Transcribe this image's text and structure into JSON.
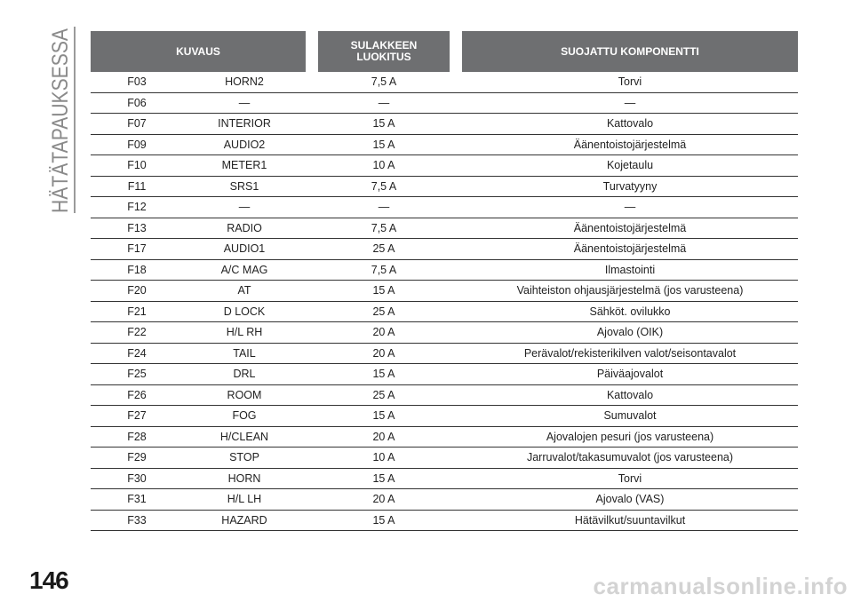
{
  "section": {
    "title": "HÄTÄTAPAUKSESSA"
  },
  "page": {
    "number": "146"
  },
  "watermark": {
    "text": "carmanualsonline.info"
  },
  "table": {
    "headers": {
      "kuvaus": "KUVAUS",
      "sulakkeen_luokitus_line1": "SULAKKEEN",
      "sulakkeen_luokitus_line2": "LUOKITUS",
      "suojattu_komponentti": "SUOJATTU KOMPONENTTI"
    },
    "rows": [
      {
        "code": "F03",
        "name": "HORN2",
        "rating": "7,5 A",
        "component": "Torvi"
      },
      {
        "code": "F06",
        "name": "—",
        "rating": "—",
        "component": "—"
      },
      {
        "code": "F07",
        "name": "INTERIOR",
        "rating": "15 A",
        "component": "Kattovalo"
      },
      {
        "code": "F09",
        "name": "AUDIO2",
        "rating": "15 A",
        "component": "Äänentoistojärjestelmä"
      },
      {
        "code": "F10",
        "name": "METER1",
        "rating": "10 A",
        "component": "Kojetaulu"
      },
      {
        "code": "F11",
        "name": "SRS1",
        "rating": "7,5 A",
        "component": "Turvatyyny"
      },
      {
        "code": "F12",
        "name": "—",
        "rating": "—",
        "component": "—"
      },
      {
        "code": "F13",
        "name": "RADIO",
        "rating": "7,5 A",
        "component": "Äänentoistojärjestelmä"
      },
      {
        "code": "F17",
        "name": "AUDIO1",
        "rating": "25 A",
        "component": "Äänentoistojärjestelmä"
      },
      {
        "code": "F18",
        "name": "A/C MAG",
        "rating": "7,5 A",
        "component": "Ilmastointi"
      },
      {
        "code": "F20",
        "name": "AT",
        "rating": "15 A",
        "component": "Vaihteiston ohjausjärjestelmä (jos varusteena)"
      },
      {
        "code": "F21",
        "name": "D LOCK",
        "rating": "25 A",
        "component": "Sähköt. ovilukko"
      },
      {
        "code": "F22",
        "name": "H/L RH",
        "rating": "20 A",
        "component": "Ajovalo (OIK)"
      },
      {
        "code": "F24",
        "name": "TAIL",
        "rating": "20 A",
        "component": "Perävalot/rekisterikilven valot/seisontavalot"
      },
      {
        "code": "F25",
        "name": "DRL",
        "rating": "15 A",
        "component": "Päiväajovalot"
      },
      {
        "code": "F26",
        "name": "ROOM",
        "rating": "25 A",
        "component": "Kattovalo"
      },
      {
        "code": "F27",
        "name": "FOG",
        "rating": "15 A",
        "component": "Sumuvalot"
      },
      {
        "code": "F28",
        "name": "H/CLEAN",
        "rating": "20 A",
        "component": "Ajovalojen pesuri (jos varusteena)"
      },
      {
        "code": "F29",
        "name": "STOP",
        "rating": "10 A",
        "component": "Jarruvalot/takasumuvalot (jos varusteena)"
      },
      {
        "code": "F30",
        "name": "HORN",
        "rating": "15 A",
        "component": "Torvi"
      },
      {
        "code": "F31",
        "name": "H/L LH",
        "rating": "20 A",
        "component": "Ajovalo (VAS)"
      },
      {
        "code": "F33",
        "name": "HAZARD",
        "rating": "15 A",
        "component": "Hätävilkut/suuntavilkut"
      }
    ]
  }
}
